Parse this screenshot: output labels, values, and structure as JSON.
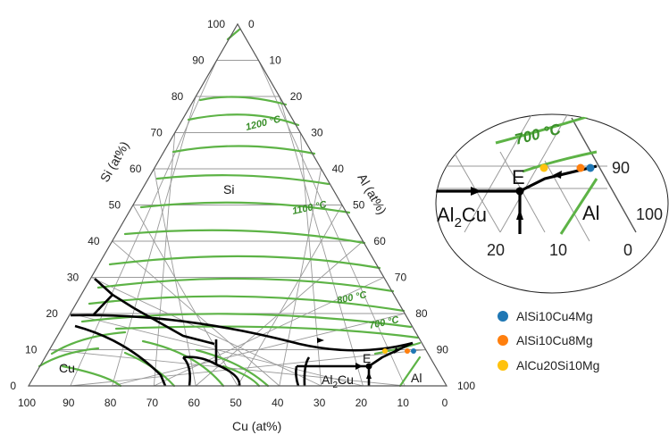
{
  "axes": {
    "bottom_title": "Cu (at%)",
    "left_title": "Si (at%)",
    "right_title": "Al (at%)",
    "bottom_ticks": [
      "100",
      "90",
      "80",
      "70",
      "60",
      "50",
      "40",
      "30",
      "20",
      "10",
      "0"
    ],
    "left_ticks": [
      "0",
      "10",
      "20",
      "30",
      "40",
      "50",
      "60",
      "70",
      "80",
      "90",
      "100"
    ],
    "right_ticks": [
      "0",
      "10",
      "20",
      "30",
      "40",
      "50",
      "60",
      "70",
      "80",
      "90",
      "100"
    ]
  },
  "regions": {
    "si": "Si",
    "cu": "Cu",
    "al": "Al",
    "al2cu_main": "Al",
    "al2cu_sub": "2",
    "al2cu_tail": "Cu",
    "eutectic": "E"
  },
  "isotherms": {
    "t1200": "1200 °C",
    "t1100": "1100 °C",
    "t800": "800 °C",
    "t700": "700 °C"
  },
  "zoom": {
    "iso_label": "700 °C",
    "eutectic": "E",
    "al": "Al",
    "al2cu_main": "Al",
    "al2cu_sub": "2",
    "al2cu_tail": "Cu",
    "ticks_bottom": [
      "20",
      "10",
      "0"
    ],
    "ticks_right": [
      "90",
      "100"
    ]
  },
  "legend": [
    {
      "label": "AlSi10Cu4Mg",
      "color": "#1f77b4"
    },
    {
      "label": "AlSi10Cu8Mg",
      "color": "#ff7f0e"
    },
    {
      "label": "AlCu20Si10Mg",
      "color": "#ffc20e"
    }
  ],
  "colors": {
    "grid": "#9a9a9a",
    "isotherm": "#5db346",
    "boundary": "#000000"
  }
}
